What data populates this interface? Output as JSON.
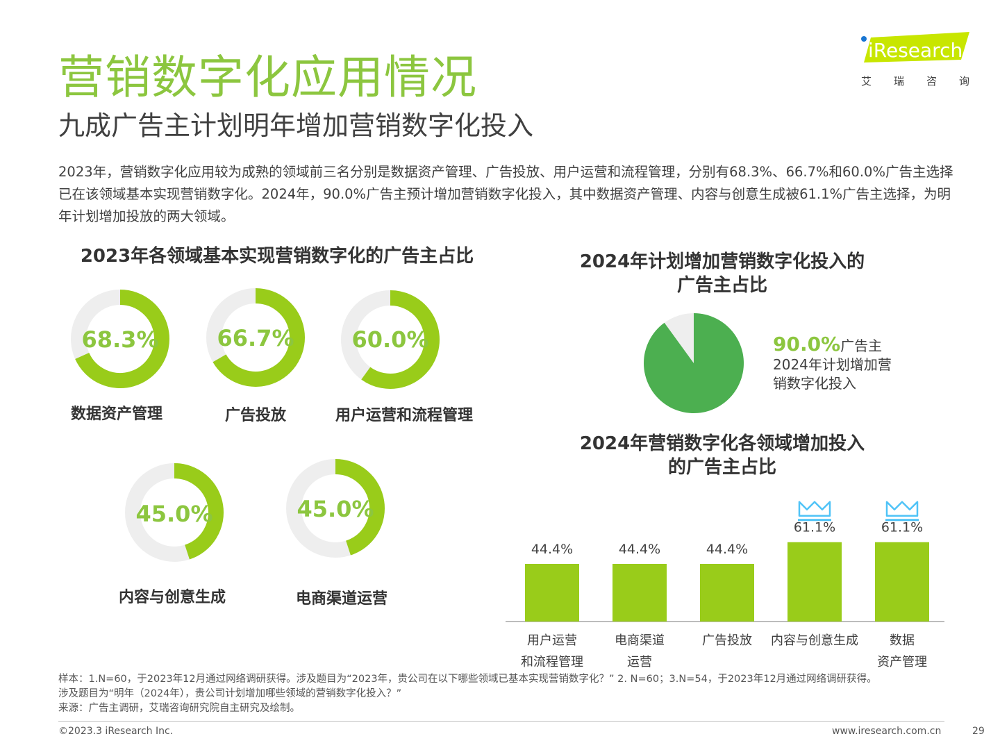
{
  "header": {
    "title": "营销数字化应用情况",
    "subtitle": "九成广告主计划明年增加营销数字化投入",
    "summary": "2023年，营销数字化应用较为成熟的领域前三名分别是数据资产管理、广告投放、用户运营和流程管理，分别有68.3%、66.7%和60.0%广告主选择已在该领域基本实现营销数字化。2024年，90.0%广告主预计增加营销数字化投入，其中数据资产管理、内容与创意生成被61.1%广告主选择，为明年计划增加投放的两大领域。"
  },
  "logo": {
    "brand": "iResearch",
    "cn_chars": [
      "艾",
      "瑞",
      "咨",
      "询"
    ]
  },
  "colors": {
    "accent": "#8cc63f",
    "bar": "#99cc1a",
    "pie": "#4caf50",
    "track": "#eeeeee",
    "crown": "#4fc3f7"
  },
  "chart_data": [
    {
      "type": "pie",
      "subtype": "donut",
      "title": "2023年各领域基本实现营销数字化的广告主占比",
      "items": [
        {
          "label": "数据资产管理",
          "value": 68.3,
          "display": "68.3%"
        },
        {
          "label": "广告投放",
          "value": 66.7,
          "display": "66.7%"
        },
        {
          "label": "用户运营和流程管理",
          "value": 60.0,
          "display": "60.0%"
        },
        {
          "label": "内容与创意生成",
          "value": 45.0,
          "display": "45.0%"
        },
        {
          "label": "电商渠道运营",
          "value": 45.0,
          "display": "45.0%"
        }
      ]
    },
    {
      "type": "pie",
      "title_line1": "2024年计划增加营销数字化投入的",
      "title_line2": "广告主占比",
      "value": 90.0,
      "display": "90.0%",
      "value_suffix": "广告主",
      "desc_line1": "2024年计划增加营",
      "desc_line2": "销数字化投入"
    },
    {
      "type": "bar",
      "title_line1": "2024年营销数字化各领域增加投入",
      "title_line2": "的广告主占比",
      "categories": [
        [
          "用户运营",
          "和流程管理"
        ],
        [
          "电商渠道",
          "运营"
        ],
        [
          "广告投放"
        ],
        [
          "内容与创意生成"
        ],
        [
          "数据",
          "资产管理"
        ]
      ],
      "values": [
        44.4,
        44.4,
        44.4,
        61.1,
        61.1
      ],
      "labels": [
        "44.4%",
        "44.4%",
        "44.4%",
        "61.1%",
        "61.1%"
      ],
      "highlight": [
        false,
        false,
        false,
        true,
        true
      ],
      "ylim": [
        0,
        100
      ]
    }
  ],
  "footer": {
    "note1": "样本：1.N=60，于2023年12月通过网络调研获得。涉及题目为“2023年，贵公司在以下哪些领域已基本实现营销数字化？”  2. N=60；3.N=54，于2023年12月通过网络调研获得。",
    "note2": "涉及题目为“明年（2024年），贵公司计划增加哪些领域的营销数字化投入？”",
    "source": "来源：广告主调研，艾瑞咨询研究院自主研究及绘制。",
    "copyright": "©2023.3 iResearch Inc.",
    "website": "www.iresearch.com.cn",
    "page": "29"
  }
}
